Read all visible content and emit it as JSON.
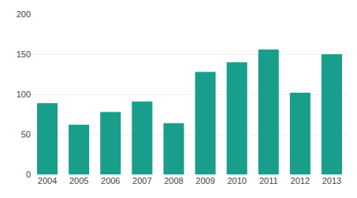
{
  "chart_data": {
    "type": "bar",
    "categories": [
      "2004",
      "2005",
      "2006",
      "2007",
      "2008",
      "2009",
      "2010",
      "2011",
      "2012",
      "2013"
    ],
    "values": [
      89,
      62,
      78,
      91,
      64,
      128,
      140,
      156,
      102,
      150
    ],
    "color": "#1a9e8c",
    "ylim": [
      0,
      200
    ],
    "yticks": [
      0,
      50,
      100,
      150,
      200
    ],
    "grid": true
  }
}
